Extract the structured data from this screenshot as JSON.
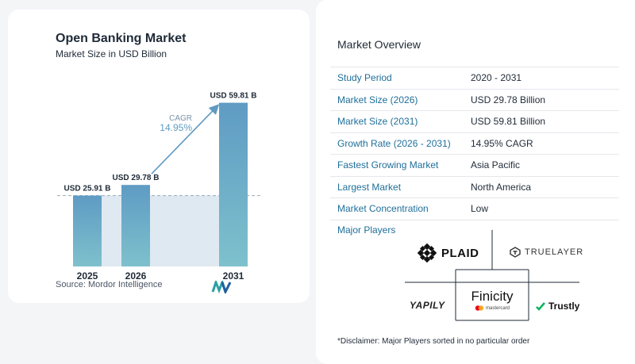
{
  "chart": {
    "title": "Open Banking Market",
    "subtitle": "Market Size in USD Billion",
    "source": "Source:  Mordor Intelligence",
    "cagr_label": "CAGR",
    "cagr_value": "14.95%"
  },
  "chart_data": {
    "type": "bar",
    "categories": [
      "2025",
      "2026",
      "2031"
    ],
    "values": [
      25.91,
      29.78,
      59.81
    ],
    "data_labels": [
      "USD 25.91 B",
      "USD 29.78 B",
      "USD 59.81 B"
    ],
    "title": "Open Banking Market",
    "subtitle": "Market Size in USD Billion",
    "xlabel": "",
    "ylabel": "",
    "ylim": [
      0,
      62
    ],
    "grid": false,
    "annotation": {
      "text": "CAGR 14.95%",
      "from": "2026",
      "to": "2031"
    },
    "colors": {
      "bar_top": "#5f9bc4",
      "bar_bottom": "#7ec1cc",
      "arrow": "#5f9bc4",
      "reference_band": "#dfe9f2"
    }
  },
  "overview": {
    "title": "Market Overview",
    "rows": [
      {
        "label": "Study Period",
        "value": "2020 - 2031"
      },
      {
        "label": "Market Size (2026)",
        "value": "USD 29.78 Billion"
      },
      {
        "label": "Market Size (2031)",
        "value": "USD 59.81 Billion"
      },
      {
        "label": "Growth Rate (2026 - 2031)",
        "value": "14.95% CAGR"
      },
      {
        "label": "Fastest Growing Market",
        "value": "Asia Pacific"
      },
      {
        "label": "Largest Market",
        "value": "North America"
      },
      {
        "label": "Market Concentration",
        "value": "Low"
      }
    ]
  },
  "players": {
    "title": "Major Players",
    "plaid": "PLAID",
    "truelayer": "TRUELAYER",
    "yapily": "YAPILY",
    "finicity": "Finicity",
    "finicity_sub": "mastercard",
    "trustly": "Trustly",
    "disclaimer": "*Disclaimer: Major Players sorted in no particular order"
  }
}
